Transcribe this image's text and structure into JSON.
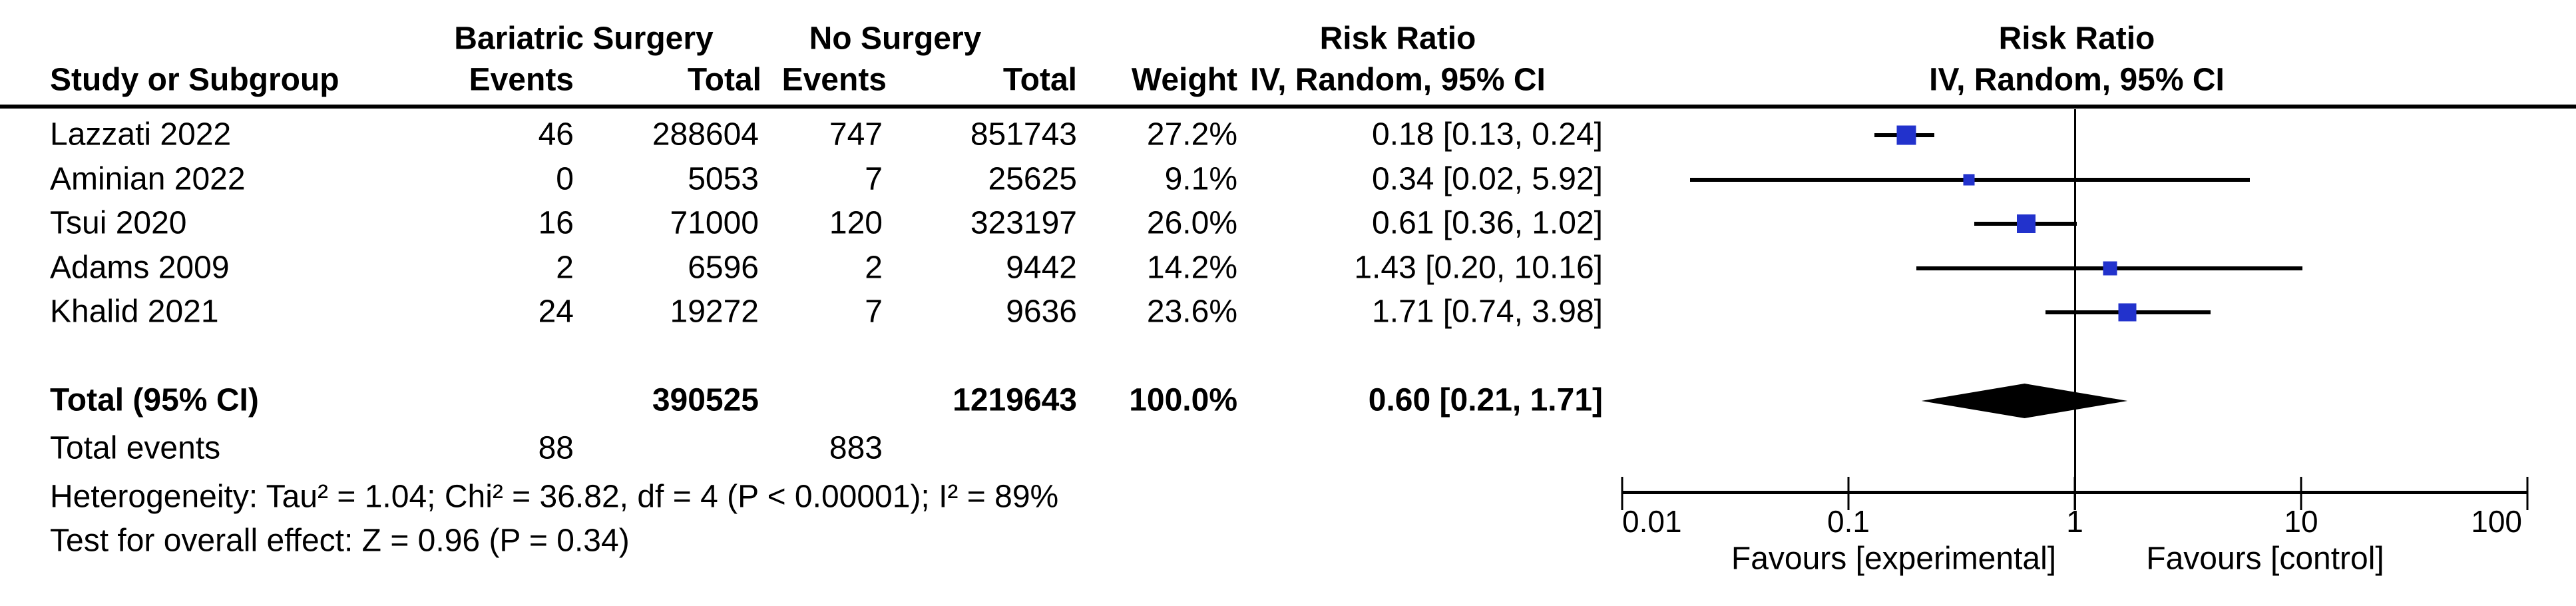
{
  "colors": {
    "marker_blue": "#2232cc",
    "diamond": "#000000",
    "line": "#000000",
    "text": "#000000",
    "background": "#ffffff"
  },
  "header": {
    "experimental_group": "Bariatric Surgery",
    "control_group": "No Surgery",
    "effect_col_title": "Risk Ratio",
    "plot_title": "Risk Ratio",
    "study_col": "Study or Subgroup",
    "events_col": "Events",
    "total_col": "Total",
    "weight_col": "Weight",
    "method_line": "IV, Random, 95% CI",
    "plot_method_line": "IV, Random, 95% CI"
  },
  "totals": {
    "label": "Total (95% CI)",
    "events_label": "Total events",
    "exp_events_total": "88",
    "ctl_events_total": "883"
  },
  "footer": {
    "heterogeneity": "Heterogeneity: Tau² = 1.04; Chi² = 36.82, df = 4 (P < 0.00001); I² = 89%",
    "overall_effect": "Test for overall effect: Z = 0.96 (P = 0.34)",
    "favours_left": "Favours [experimental]",
    "favours_right": "Favours [control]"
  },
  "chart_data": {
    "type": "forest",
    "effect_measure": "Risk Ratio",
    "model": "IV, Random, 95% CI",
    "x_scale": "log10",
    "x_ticks": [
      0.01,
      0.1,
      1,
      10,
      100
    ],
    "x_range": [
      0.01,
      100
    ],
    "studies": [
      {
        "study": "Lazzati 2022",
        "exp_events": 46,
        "exp_total": 288604,
        "ctl_events": 747,
        "ctl_total": 851743,
        "weight_pct": 27.2,
        "rr": 0.18,
        "ci_low": 0.13,
        "ci_high": 0.24
      },
      {
        "study": "Aminian 2022",
        "exp_events": 0,
        "exp_total": 5053,
        "ctl_events": 7,
        "ctl_total": 25625,
        "weight_pct": 9.1,
        "rr": 0.34,
        "ci_low": 0.02,
        "ci_high": 5.92
      },
      {
        "study": "Tsui 2020",
        "exp_events": 16,
        "exp_total": 71000,
        "ctl_events": 120,
        "ctl_total": 323197,
        "weight_pct": 26.0,
        "rr": 0.61,
        "ci_low": 0.36,
        "ci_high": 1.02
      },
      {
        "study": "Adams 2009",
        "exp_events": 2,
        "exp_total": 6596,
        "ctl_events": 2,
        "ctl_total": 9442,
        "weight_pct": 14.2,
        "rr": 1.43,
        "ci_low": 0.2,
        "ci_high": 10.16
      },
      {
        "study": "Khalid 2021",
        "exp_events": 24,
        "exp_total": 19272,
        "ctl_events": 7,
        "ctl_total": 9636,
        "weight_pct": 23.6,
        "rr": 1.71,
        "ci_low": 0.74,
        "ci_high": 3.98
      }
    ],
    "total": {
      "exp_total": 390525,
      "ctl_total": 1219643,
      "weight_pct": 100.0,
      "rr": 0.6,
      "ci_low": 0.21,
      "ci_high": 1.71
    },
    "total_events": {
      "experimental": 88,
      "control": 883
    },
    "heterogeneity": {
      "tau2": 1.04,
      "chi2": 36.82,
      "df": 4,
      "p_text": "P < 0.00001",
      "i2_pct": 89
    },
    "overall_effect": {
      "z": 0.96,
      "p_text": "P = 0.34"
    }
  }
}
